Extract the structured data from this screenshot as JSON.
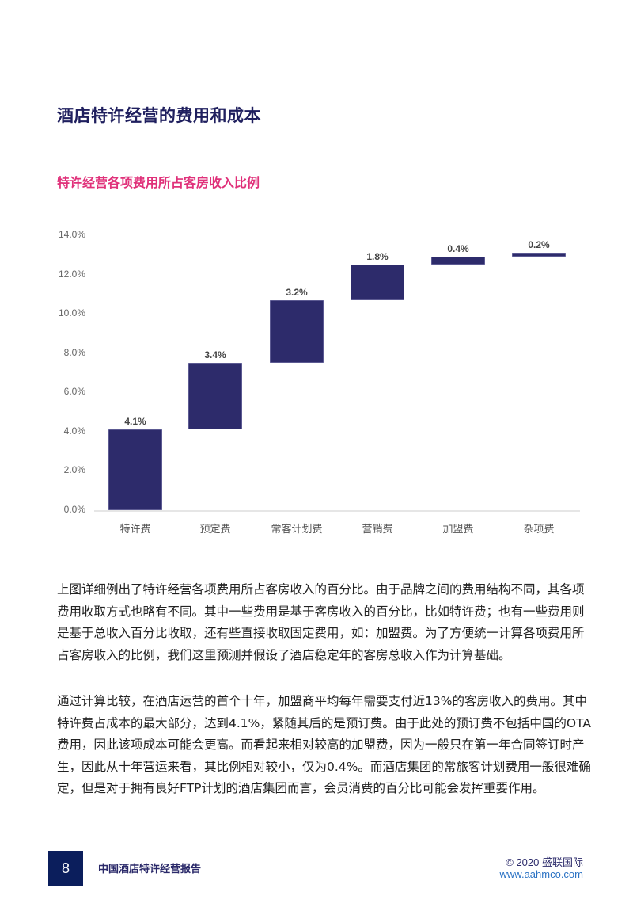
{
  "page": {
    "title": "酒店特许经营的费用和成本",
    "chart_title": "特许经营各项费用所占客房收入比例"
  },
  "chart_data": {
    "type": "bar",
    "subtype": "waterfall",
    "title": "特许经营各项费用所占客房收入比例",
    "categories": [
      "特许费",
      "预定费",
      "常客计划费",
      "营销费",
      "加盟费",
      "杂项费"
    ],
    "values": [
      4.1,
      3.4,
      3.2,
      1.8,
      0.4,
      0.2
    ],
    "value_labels": [
      "4.1%",
      "3.4%",
      "3.2%",
      "1.8%",
      "0.4%",
      "0.2%"
    ],
    "cumulative_start": [
      0.0,
      4.1,
      7.5,
      10.7,
      12.5,
      12.9
    ],
    "cumulative_end": [
      4.1,
      7.5,
      10.7,
      12.5,
      12.9,
      13.1
    ],
    "yticks": [
      "0.0%",
      "2.0%",
      "4.0%",
      "6.0%",
      "8.0%",
      "10.0%",
      "12.0%",
      "14.0%"
    ],
    "ylim": [
      0,
      14
    ],
    "xlabel": "",
    "ylabel": "",
    "grid": false,
    "legend": "none",
    "bar_color": "#2d2b6b"
  },
  "body": {
    "paragraph_1": "上图详细例出了特许经营各项费用所占客房收入的百分比。由于品牌之间的费用结构不同，其各项费用收取方式也略有不同。其中一些费用是基于客房收入的百分比，比如特许费；也有一些费用则是基于总收入百分比收取，还有些直接收取固定费用，如：加盟费。为了方便统一计算各项费用所占客房收入的比例，我们这里预测并假设了酒店稳定年的客房总收入作为计算基础。",
    "paragraph_2": "通过计算比较，在酒店运营的首个十年，加盟商平均每年需要支付近13%的客房收入的费用。其中特许费占成本的最大部分，达到4.1%，紧随其后的是预订费。由于此处的预订费不包括中国的OTA费用，因此该项成本可能会更高。而看起来相对较高的加盟费，因为一般只在第一年合同签订时产生，因此从十年营运来看，其比例相对较小，仅为0.4%。而酒店集团的常旅客计划费用一般很难确定，但是对于拥有良好FTP计划的酒店集团而言，会员消费的百分比可能会发挥重要作用。"
  },
  "footer": {
    "page_number": "8",
    "report_name": "中国酒店特许经营报告",
    "copyright": "© 2020 盛联国际",
    "website": "www.aahmco.com"
  }
}
